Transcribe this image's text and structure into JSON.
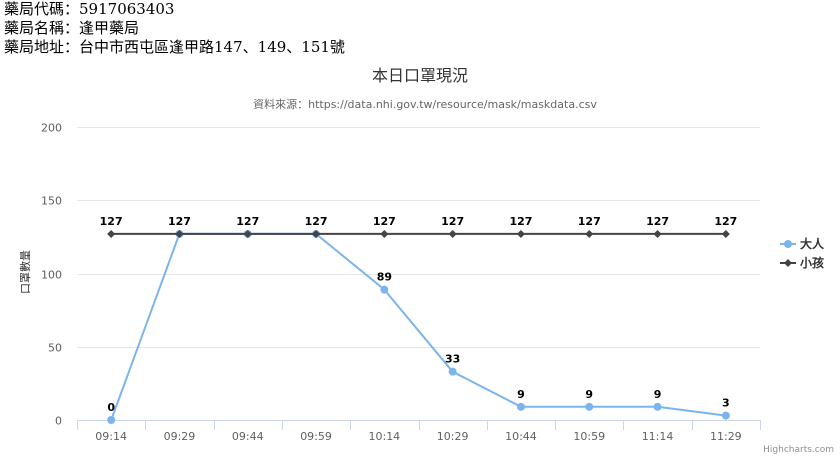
{
  "pharmacy": {
    "code_label": "藥局代碼：",
    "code": "5917063403",
    "name_label": "藥局名稱：",
    "name": "逢甲藥局",
    "address_label": "藥局地址：",
    "address": "台中市西屯區逢甲路147、149、151號"
  },
  "chart_data": {
    "type": "line",
    "title": "本日口罩現況",
    "subtitle": "資料來源：https://data.nhi.gov.tw/resource/mask/maskdata.csv",
    "xlabel": "",
    "ylabel": "口罩數量",
    "ylim": [
      0,
      200
    ],
    "yticks": [
      0,
      50,
      100,
      150,
      200
    ],
    "categories": [
      "09:14",
      "09:29",
      "09:44",
      "09:59",
      "10:14",
      "10:29",
      "10:44",
      "10:59",
      "11:14",
      "11:29"
    ],
    "series": [
      {
        "name": "大人",
        "color": "#7cb5ec",
        "marker": "circle",
        "values": [
          0,
          127,
          127,
          127,
          89,
          33,
          9,
          9,
          9,
          3
        ],
        "labels": [
          "0",
          "",
          "",
          "",
          "89",
          "33",
          "9",
          "9",
          "9",
          "3"
        ]
      },
      {
        "name": "小孩",
        "color": "#434348",
        "marker": "diamond",
        "values": [
          127,
          127,
          127,
          127,
          127,
          127,
          127,
          127,
          127,
          127
        ],
        "labels": [
          "127",
          "127",
          "127",
          "127",
          "127",
          "127",
          "127",
          "127",
          "127",
          "127"
        ]
      }
    ],
    "legend": "right",
    "grid": true
  },
  "credits": "Highcharts.com"
}
